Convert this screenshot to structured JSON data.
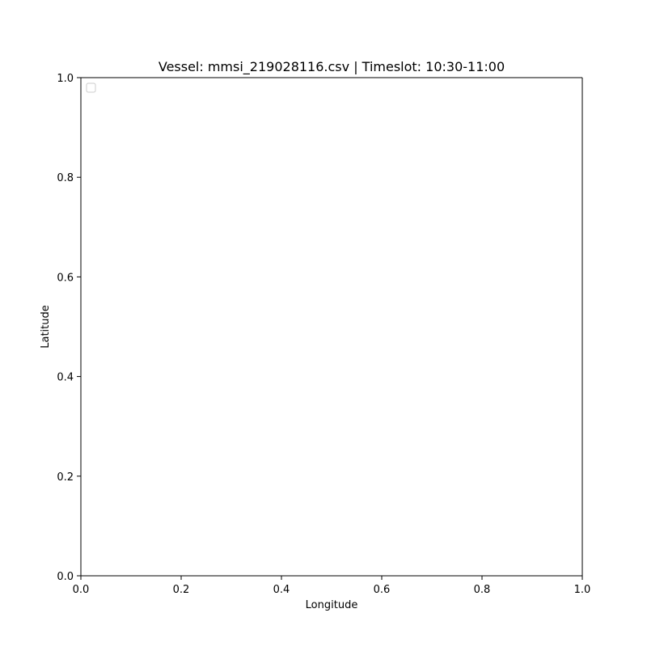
{
  "chart_data": {
    "type": "line",
    "title": "Vessel: mmsi_219028116.csv | Timeslot: 10:30-11:00",
    "xlabel": "Longitude",
    "ylabel": "Latitude",
    "xlim": [
      0.0,
      1.0
    ],
    "ylim": [
      0.0,
      1.0
    ],
    "xticks": [
      "0.0",
      "0.2",
      "0.4",
      "0.6",
      "0.8",
      "1.0"
    ],
    "yticks": [
      "0.0",
      "0.2",
      "0.4",
      "0.6",
      "0.8",
      "1.0"
    ],
    "grid": false,
    "legend": {
      "placement": "top-left",
      "entries": []
    },
    "series": []
  }
}
